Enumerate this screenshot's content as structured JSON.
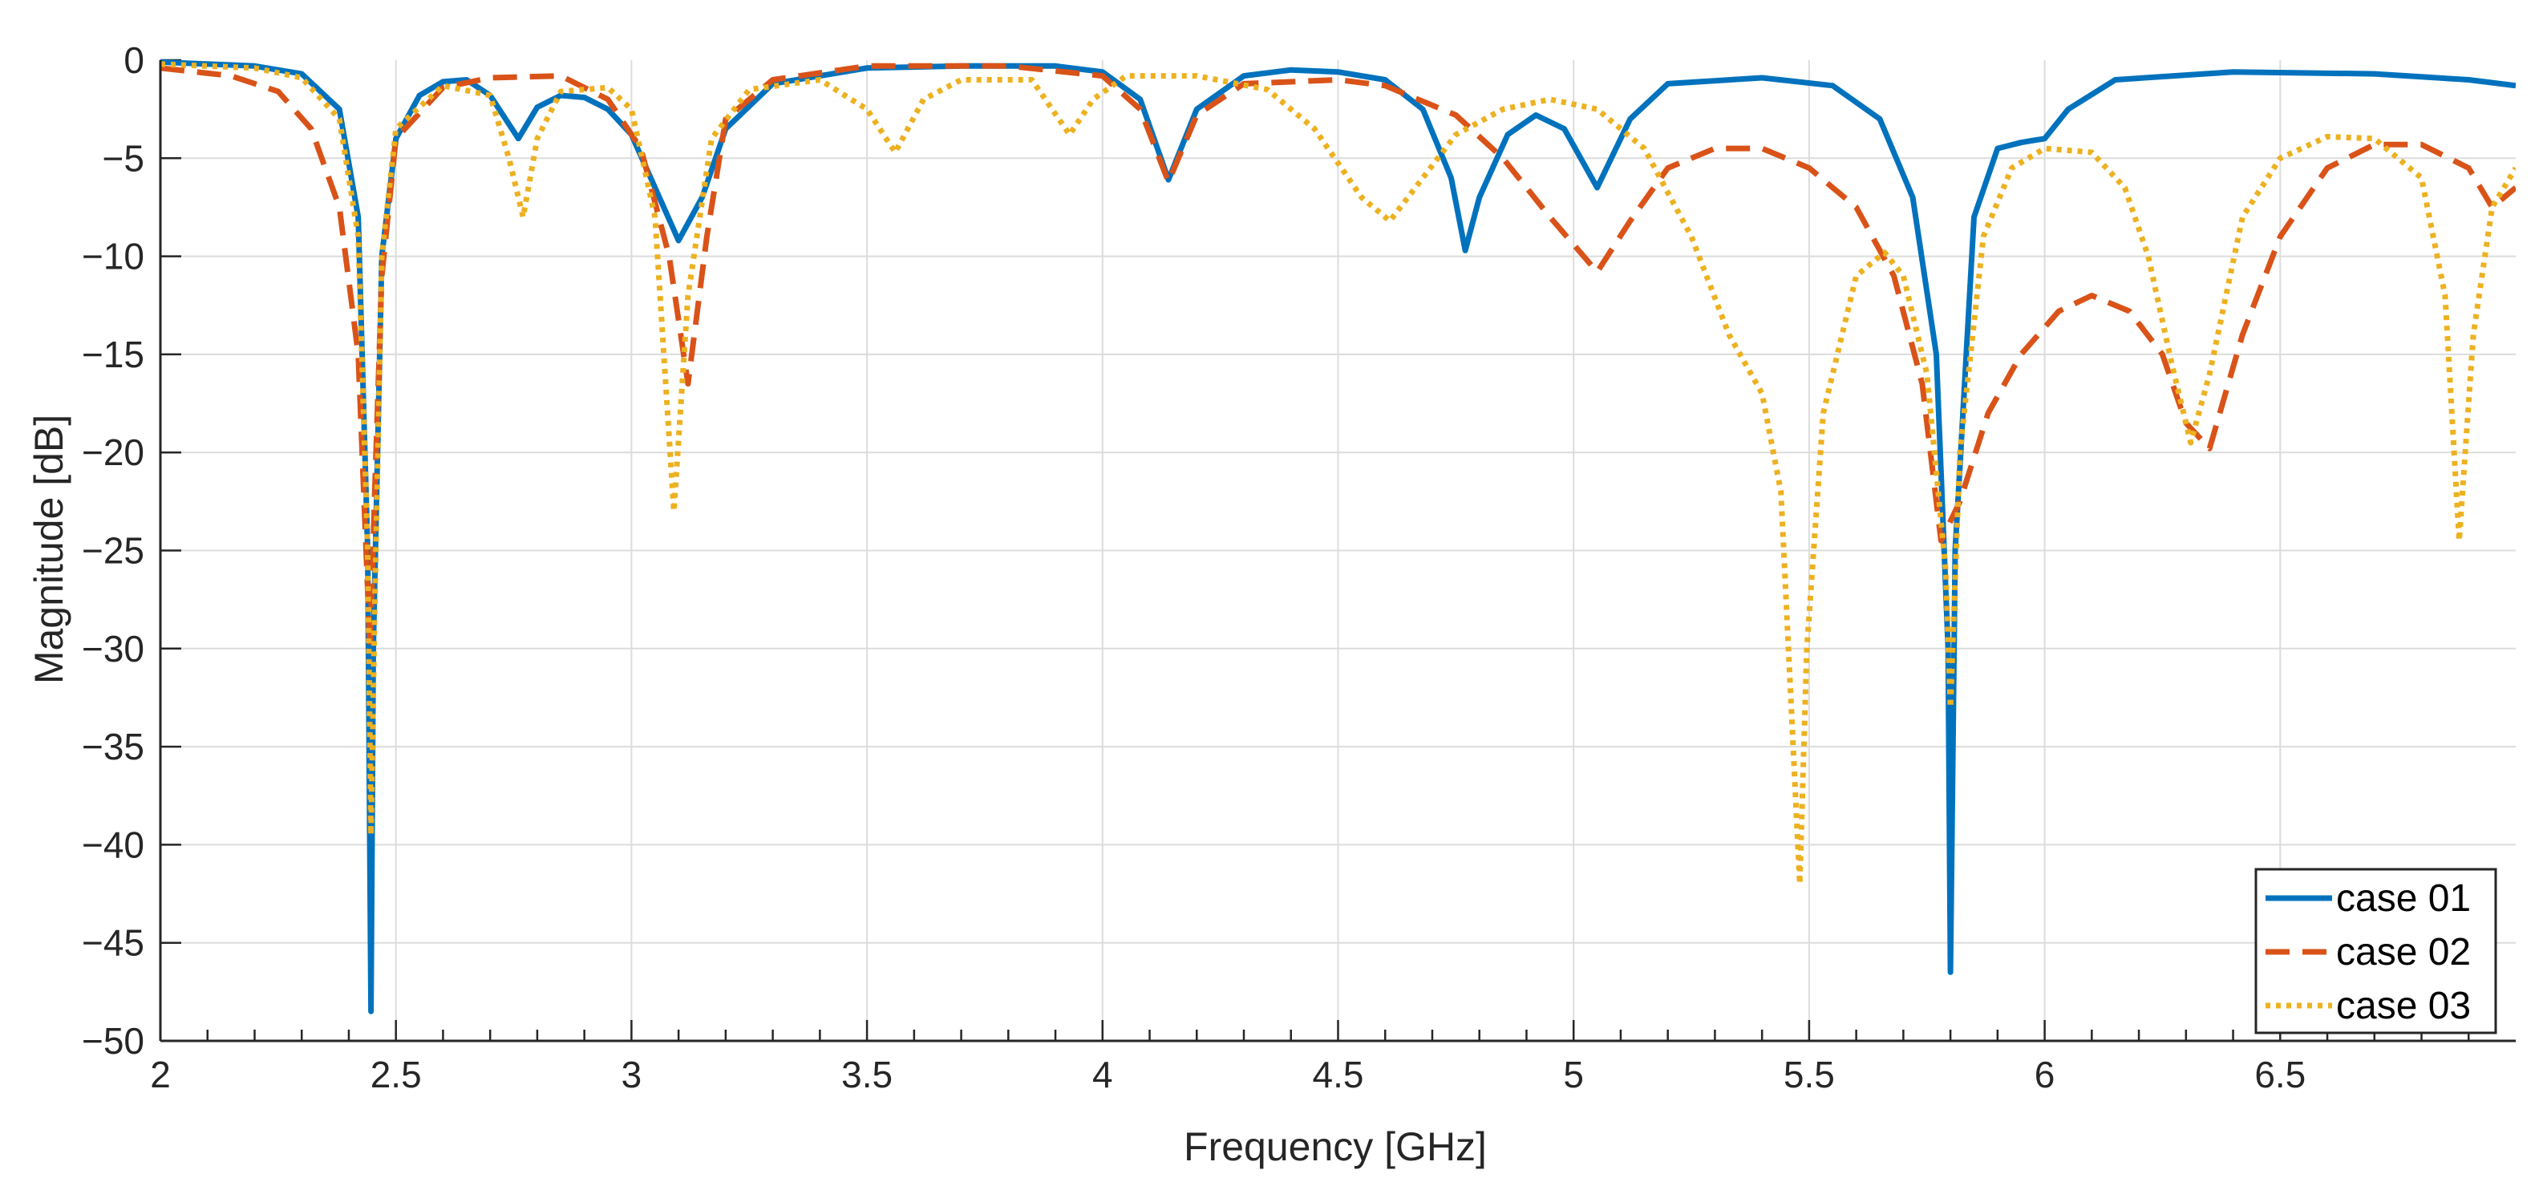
{
  "chart_data": {
    "type": "line",
    "title": "",
    "xlabel": "Frequency [GHz]",
    "ylabel": "Magnitude [dB]",
    "xlim": [
      2,
      7
    ],
    "ylim": [
      -50,
      0
    ],
    "xticks": [
      2,
      2.5,
      3,
      3.5,
      4,
      4.5,
      5,
      5.5,
      6,
      6.5
    ],
    "xtick_labels": [
      "2",
      "2.5",
      "3",
      "3.5",
      "4",
      "4.5",
      "5",
      "5.5",
      "6",
      "6.5"
    ],
    "yticks": [
      0,
      -5,
      -10,
      -15,
      -20,
      -25,
      -30,
      -35,
      -40,
      -45,
      -50
    ],
    "ytick_labels": [
      "0",
      "−5",
      "−10",
      "−15",
      "−20",
      "−25",
      "−30",
      "−35",
      "−40",
      "−45",
      "−50"
    ],
    "grid": true,
    "legend_position": "bottom-right",
    "series": [
      {
        "name": "case 01",
        "color": "#0072BD",
        "style": "solid",
        "points": [
          [
            2.0,
            -0.1
          ],
          [
            2.2,
            -0.3
          ],
          [
            2.3,
            -0.7
          ],
          [
            2.38,
            -2.5
          ],
          [
            2.42,
            -8
          ],
          [
            2.44,
            -25
          ],
          [
            2.447,
            -48.5
          ],
          [
            2.452,
            -30
          ],
          [
            2.47,
            -10
          ],
          [
            2.5,
            -4
          ],
          [
            2.55,
            -1.8
          ],
          [
            2.6,
            -1.1
          ],
          [
            2.65,
            -1.0
          ],
          [
            2.7,
            -1.8
          ],
          [
            2.76,
            -4.0
          ],
          [
            2.8,
            -2.4
          ],
          [
            2.85,
            -1.8
          ],
          [
            2.9,
            -1.9
          ],
          [
            2.95,
            -2.5
          ],
          [
            3.0,
            -3.8
          ],
          [
            3.05,
            -6.5
          ],
          [
            3.1,
            -9.2
          ],
          [
            3.15,
            -7.0
          ],
          [
            3.2,
            -3.5
          ],
          [
            3.3,
            -1.2
          ],
          [
            3.5,
            -0.4
          ],
          [
            3.7,
            -0.3
          ],
          [
            3.9,
            -0.3
          ],
          [
            4.0,
            -0.6
          ],
          [
            4.08,
            -2.0
          ],
          [
            4.14,
            -6.1
          ],
          [
            4.2,
            -2.5
          ],
          [
            4.3,
            -0.8
          ],
          [
            4.4,
            -0.5
          ],
          [
            4.5,
            -0.6
          ],
          [
            4.6,
            -1.0
          ],
          [
            4.68,
            -2.5
          ],
          [
            4.74,
            -6.0
          ],
          [
            4.77,
            -9.7
          ],
          [
            4.8,
            -7.0
          ],
          [
            4.86,
            -3.8
          ],
          [
            4.92,
            -2.8
          ],
          [
            4.98,
            -3.5
          ],
          [
            5.05,
            -6.5
          ],
          [
            5.12,
            -3.0
          ],
          [
            5.2,
            -1.2
          ],
          [
            5.4,
            -0.9
          ],
          [
            5.55,
            -1.3
          ],
          [
            5.65,
            -3.0
          ],
          [
            5.72,
            -7.0
          ],
          [
            5.77,
            -15.0
          ],
          [
            5.795,
            -30
          ],
          [
            5.8,
            -46.5
          ],
          [
            5.81,
            -25
          ],
          [
            5.85,
            -8
          ],
          [
            5.9,
            -4.5
          ],
          [
            5.95,
            -4.2
          ],
          [
            6.0,
            -4.0
          ],
          [
            6.05,
            -2.5
          ],
          [
            6.15,
            -1.0
          ],
          [
            6.4,
            -0.6
          ],
          [
            6.7,
            -0.7
          ],
          [
            6.9,
            -1.0
          ],
          [
            7.0,
            -1.3
          ]
        ]
      },
      {
        "name": "case 02",
        "color": "#D95319",
        "style": "dashed",
        "points": [
          [
            2.0,
            -0.4
          ],
          [
            2.15,
            -0.8
          ],
          [
            2.25,
            -1.6
          ],
          [
            2.32,
            -3.5
          ],
          [
            2.38,
            -7.5
          ],
          [
            2.42,
            -15
          ],
          [
            2.445,
            -30
          ],
          [
            2.455,
            -22
          ],
          [
            2.47,
            -11
          ],
          [
            2.5,
            -4
          ],
          [
            2.6,
            -1.4
          ],
          [
            2.7,
            -0.9
          ],
          [
            2.85,
            -0.8
          ],
          [
            2.95,
            -2.0
          ],
          [
            3.02,
            -4.5
          ],
          [
            3.08,
            -10
          ],
          [
            3.12,
            -16.5
          ],
          [
            3.16,
            -9
          ],
          [
            3.2,
            -3.0
          ],
          [
            3.3,
            -1.0
          ],
          [
            3.5,
            -0.3
          ],
          [
            3.8,
            -0.3
          ],
          [
            4.0,
            -0.8
          ],
          [
            4.08,
            -2.5
          ],
          [
            4.14,
            -6.2
          ],
          [
            4.2,
            -2.8
          ],
          [
            4.3,
            -1.2
          ],
          [
            4.5,
            -1.0
          ],
          [
            4.6,
            -1.3
          ],
          [
            4.75,
            -2.8
          ],
          [
            4.85,
            -5.0
          ],
          [
            4.95,
            -8.0
          ],
          [
            5.05,
            -10.8
          ],
          [
            5.12,
            -8.2
          ],
          [
            5.2,
            -5.5
          ],
          [
            5.3,
            -4.5
          ],
          [
            5.4,
            -4.5
          ],
          [
            5.5,
            -5.5
          ],
          [
            5.6,
            -7.5
          ],
          [
            5.68,
            -11.0
          ],
          [
            5.74,
            -16.5
          ],
          [
            5.78,
            -24.5
          ],
          [
            5.82,
            -22.5
          ],
          [
            5.88,
            -18.0
          ],
          [
            5.95,
            -15.0
          ],
          [
            6.03,
            -12.8
          ],
          [
            6.1,
            -12.0
          ],
          [
            6.18,
            -12.8
          ],
          [
            6.25,
            -15.0
          ],
          [
            6.3,
            -18.5
          ],
          [
            6.35,
            -19.8
          ],
          [
            6.42,
            -14.0
          ],
          [
            6.5,
            -9.0
          ],
          [
            6.6,
            -5.5
          ],
          [
            6.7,
            -4.3
          ],
          [
            6.8,
            -4.3
          ],
          [
            6.9,
            -5.5
          ],
          [
            6.95,
            -7.5
          ],
          [
            7.0,
            -6.5
          ]
        ]
      },
      {
        "name": "case 03",
        "color": "#EDB120",
        "style": "dotted",
        "points": [
          [
            2.0,
            -0.2
          ],
          [
            2.2,
            -0.4
          ],
          [
            2.3,
            -0.9
          ],
          [
            2.38,
            -3.0
          ],
          [
            2.42,
            -9
          ],
          [
            2.44,
            -25
          ],
          [
            2.447,
            -39.5
          ],
          [
            2.455,
            -28
          ],
          [
            2.47,
            -10
          ],
          [
            2.5,
            -3.5
          ],
          [
            2.6,
            -1.3
          ],
          [
            2.7,
            -1.8
          ],
          [
            2.74,
            -5.0
          ],
          [
            2.77,
            -8.0
          ],
          [
            2.8,
            -4.0
          ],
          [
            2.85,
            -1.6
          ],
          [
            2.95,
            -1.4
          ],
          [
            3.0,
            -2.5
          ],
          [
            3.05,
            -8.0
          ],
          [
            3.09,
            -23.0
          ],
          [
            3.12,
            -12.0
          ],
          [
            3.17,
            -4.0
          ],
          [
            3.25,
            -1.5
          ],
          [
            3.4,
            -1.0
          ],
          [
            3.5,
            -2.5
          ],
          [
            3.56,
            -4.7
          ],
          [
            3.62,
            -2.0
          ],
          [
            3.7,
            -1.0
          ],
          [
            3.85,
            -1.0
          ],
          [
            3.93,
            -3.8
          ],
          [
            3.98,
            -2.0
          ],
          [
            4.05,
            -0.8
          ],
          [
            4.2,
            -0.8
          ],
          [
            4.35,
            -1.5
          ],
          [
            4.45,
            -3.5
          ],
          [
            4.55,
            -7.0
          ],
          [
            4.61,
            -8.2
          ],
          [
            4.68,
            -6.0
          ],
          [
            4.75,
            -3.8
          ],
          [
            4.85,
            -2.5
          ],
          [
            4.95,
            -2.0
          ],
          [
            5.05,
            -2.5
          ],
          [
            5.15,
            -4.5
          ],
          [
            5.25,
            -9.0
          ],
          [
            5.33,
            -14.0
          ],
          [
            5.4,
            -17.0
          ],
          [
            5.44,
            -22.0
          ],
          [
            5.48,
            -42.0
          ],
          [
            5.495,
            -30.0
          ],
          [
            5.53,
            -18.0
          ],
          [
            5.6,
            -11.0
          ],
          [
            5.66,
            -9.8
          ],
          [
            5.7,
            -11.0
          ],
          [
            5.75,
            -16.0
          ],
          [
            5.79,
            -26.0
          ],
          [
            5.8,
            -33.0
          ],
          [
            5.82,
            -20.0
          ],
          [
            5.87,
            -9.0
          ],
          [
            5.93,
            -5.5
          ],
          [
            6.0,
            -4.5
          ],
          [
            6.1,
            -4.7
          ],
          [
            6.17,
            -6.5
          ],
          [
            6.22,
            -10.0
          ],
          [
            6.27,
            -15.5
          ],
          [
            6.31,
            -19.5
          ],
          [
            6.35,
            -16.0
          ],
          [
            6.42,
            -8.0
          ],
          [
            6.5,
            -5.0
          ],
          [
            6.6,
            -3.9
          ],
          [
            6.7,
            -4.0
          ],
          [
            6.8,
            -6.0
          ],
          [
            6.85,
            -12.0
          ],
          [
            6.88,
            -24.5
          ],
          [
            6.91,
            -14.0
          ],
          [
            6.95,
            -7.5
          ],
          [
            7.0,
            -5.5
          ]
        ]
      }
    ]
  }
}
